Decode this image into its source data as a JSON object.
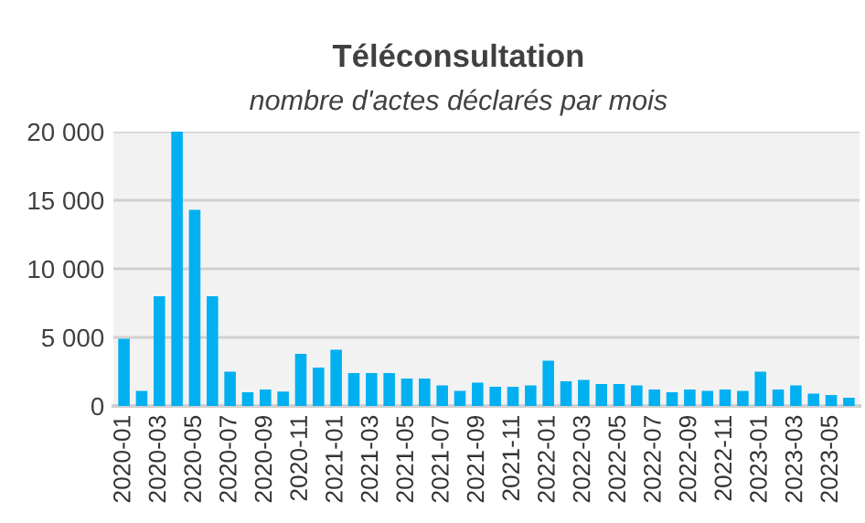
{
  "chart_data": {
    "type": "bar",
    "title": "Téléconsultation",
    "subtitle": "nombre d'actes déclarés par mois",
    "categories": [
      "2020-01",
      null,
      "2020-03",
      null,
      "2020-05",
      null,
      "2020-07",
      null,
      "2020-09",
      null,
      "2020-11",
      null,
      "2021-01",
      null,
      "2021-03",
      null,
      "2021-05",
      null,
      "2021-07",
      null,
      "2021-09",
      null,
      "2021-11",
      null,
      "2022-01",
      null,
      "2022-03",
      null,
      "2022-05",
      null,
      "2022-07",
      null,
      "2022-09",
      null,
      "2022-11",
      null,
      "2023-01",
      null,
      "2023-03",
      null,
      "2023-05",
      null
    ],
    "values": [
      4900,
      1100,
      8000,
      20000,
      14300,
      8000,
      2500,
      1000,
      1200,
      1050,
      3800,
      2800,
      4100,
      2400,
      2400,
      2400,
      2000,
      2000,
      1500,
      1100,
      1700,
      1400,
      1400,
      1500,
      3300,
      1800,
      1900,
      1600,
      1600,
      1500,
      1200,
      1000,
      1200,
      1100,
      1200,
      1100,
      2500,
      1200,
      1500,
      900,
      800,
      600
    ],
    "color": "#00b0f0",
    "ylim": [
      0,
      20000
    ],
    "yticks": [
      {
        "value": 0,
        "label": "0"
      },
      {
        "value": 5000,
        "label": "5 000"
      },
      {
        "value": 10000,
        "label": "10 000"
      },
      {
        "value": 15000,
        "label": "15 000"
      },
      {
        "value": 20000,
        "label": "20 000"
      }
    ],
    "grid": "y",
    "legend": false
  }
}
